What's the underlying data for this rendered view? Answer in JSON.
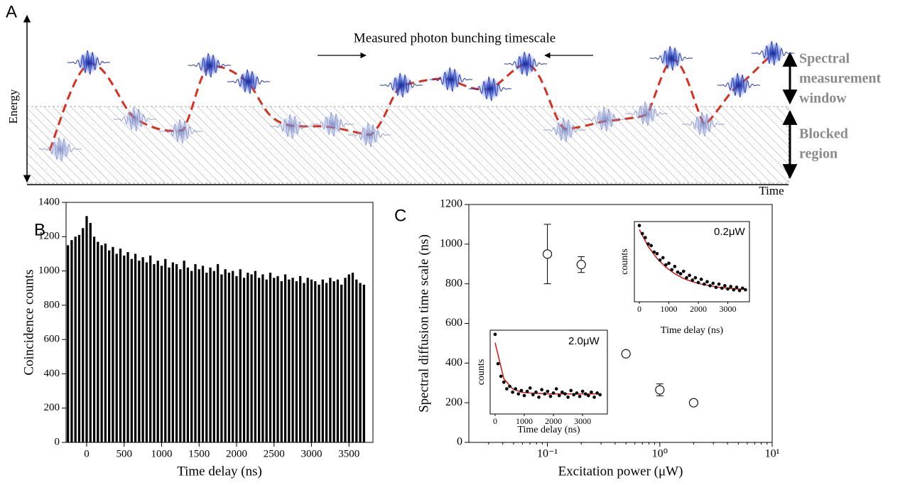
{
  "panel_labels": [
    "A",
    "B",
    "C"
  ],
  "diagram": {
    "title": "Measured photon bunching timescale",
    "y_label": "Energy",
    "x_label": "Time",
    "window_label": [
      "Spectral",
      "measurement",
      "window"
    ],
    "blocked_label": [
      "Blocked",
      "region"
    ]
  },
  "chart_data": [
    {
      "type": "bar",
      "xlabel": "Time delay (ns)",
      "ylabel": "Coincidence counts",
      "color": "#000000",
      "x": [
        -250,
        -200,
        -150,
        -100,
        -50,
        0,
        50,
        100,
        150,
        200,
        250,
        300,
        350,
        400,
        450,
        500,
        550,
        600,
        650,
        700,
        750,
        800,
        850,
        900,
        950,
        1000,
        1050,
        1100,
        1150,
        1200,
        1250,
        1300,
        1350,
        1400,
        1450,
        1500,
        1550,
        1600,
        1650,
        1700,
        1750,
        1800,
        1850,
        1900,
        1950,
        2000,
        2050,
        2100,
        2150,
        2200,
        2250,
        2300,
        2350,
        2400,
        2450,
        2500,
        2550,
        2600,
        2650,
        2700,
        2750,
        2800,
        2850,
        2900,
        2950,
        3000,
        3050,
        3100,
        3150,
        3200,
        3250,
        3300,
        3350,
        3400,
        3450,
        3500,
        3550,
        3600,
        3650,
        3700
      ],
      "values": [
        1150,
        1180,
        1200,
        1210,
        1250,
        1320,
        1280,
        1200,
        1170,
        1150,
        1160,
        1120,
        1140,
        1100,
        1130,
        1090,
        1110,
        1070,
        1100,
        1060,
        1080,
        1050,
        1090,
        1040,
        1060,
        1030,
        1070,
        1020,
        1050,
        1040,
        1010,
        1060,
        1020,
        1000,
        1040,
        1010,
        1030,
        990,
        1020,
        1000,
        1040,
        980,
        1010,
        990,
        1000,
        970,
        1010,
        960,
        990,
        980,
        1000,
        960,
        980,
        950,
        990,
        960,
        970,
        940,
        980,
        950,
        960,
        940,
        970,
        930,
        960,
        950,
        940,
        920,
        950,
        930,
        960,
        940,
        950,
        920,
        960,
        980,
        990,
        950,
        930,
        920
      ],
      "xlim": [
        -275,
        3820
      ],
      "ylim": [
        0,
        1400
      ],
      "xticks": [
        0,
        500,
        1000,
        1500,
        2000,
        2500,
        3000,
        3500
      ],
      "yticks": [
        0,
        200,
        400,
        600,
        800,
        1000,
        1200,
        1400
      ]
    },
    {
      "type": "scatter",
      "xlabel": "Excitation power  (μW)",
      "ylabel": "Spectral diffusion time scale (ns)",
      "color": "#000000",
      "xscale": "log",
      "x": [
        0.1,
        0.2,
        0.5,
        1,
        2
      ],
      "values": [
        950,
        897,
        447,
        265,
        200
      ],
      "errors": [
        150,
        40,
        10,
        30,
        12
      ],
      "xlim": [
        0.02,
        10
      ],
      "ylim": [
        0,
        1200
      ],
      "xticks": [
        {
          "value": 0.1,
          "label": "10⁻¹"
        },
        {
          "value": 1,
          "label": "10⁰"
        },
        {
          "value": 10,
          "label": "10¹"
        }
      ],
      "yticks": [
        0,
        200,
        400,
        600,
        800,
        1000,
        1200
      ]
    },
    {
      "type": "scatter",
      "label": "0.2μW",
      "xlabel": "Time delay (ns)",
      "ylabel": "counts",
      "color": "#000000",
      "x": [
        0,
        100,
        200,
        300,
        400,
        500,
        600,
        700,
        800,
        900,
        1000,
        1100,
        1200,
        1300,
        1400,
        1500,
        1600,
        1700,
        1800,
        1900,
        2000,
        2100,
        2200,
        2300,
        2400,
        2500,
        2600,
        2700,
        2800,
        2900,
        3000,
        3100,
        3200,
        3300,
        3400,
        3500,
        3600
      ],
      "values": [
        0.95,
        0.85,
        0.8,
        0.72,
        0.7,
        0.62,
        0.6,
        0.52,
        0.55,
        0.46,
        0.48,
        0.4,
        0.44,
        0.37,
        0.35,
        0.38,
        0.3,
        0.33,
        0.27,
        0.3,
        0.24,
        0.28,
        0.22,
        0.25,
        0.2,
        0.23,
        0.18,
        0.22,
        0.17,
        0.2,
        0.16,
        0.19,
        0.15,
        0.18,
        0.14,
        0.17,
        0.15
      ],
      "fit": {
        "color": "#d42020",
        "x": [
          0,
          300,
          600,
          900,
          1200,
          1500,
          1800,
          2100,
          2400,
          2700,
          3000,
          3300,
          3600
        ],
        "values": [
          0.9,
          0.69,
          0.54,
          0.43,
          0.35,
          0.29,
          0.25,
          0.22,
          0.2,
          0.18,
          0.17,
          0.16,
          0.16
        ]
      },
      "xlim": [
        -170,
        3735
      ],
      "ylim": [
        0,
        1
      ],
      "xticks": [
        0,
        1000,
        2000,
        3000
      ]
    },
    {
      "type": "scatter",
      "label": "2.0μW",
      "xlabel": "Time delay (ns)",
      "ylabel": "counts",
      "color": "#000000",
      "x": [
        0,
        100,
        200,
        300,
        400,
        500,
        600,
        700,
        800,
        900,
        1000,
        1100,
        1200,
        1300,
        1400,
        1500,
        1600,
        1700,
        1800,
        1900,
        2000,
        2100,
        2200,
        2300,
        2400,
        2500,
        2600,
        2700,
        2800,
        2900,
        3000,
        3100,
        3200,
        3300,
        3400,
        3500,
        3600
      ],
      "values": [
        0.95,
        0.6,
        0.45,
        0.38,
        0.3,
        0.33,
        0.26,
        0.3,
        0.24,
        0.28,
        0.22,
        0.27,
        0.31,
        0.23,
        0.26,
        0.2,
        0.29,
        0.24,
        0.27,
        0.21,
        0.25,
        0.3,
        0.22,
        0.26,
        0.24,
        0.2,
        0.28,
        0.23,
        0.25,
        0.21,
        0.27,
        0.24,
        0.22,
        0.26,
        0.2,
        0.25,
        0.23
      ],
      "fit": {
        "color": "#d42020",
        "x": [
          0,
          300,
          600,
          900,
          1200,
          1500,
          1800,
          2100,
          2400,
          2700,
          3000,
          3300,
          3600
        ],
        "values": [
          0.85,
          0.42,
          0.3,
          0.26,
          0.25,
          0.245,
          0.24,
          0.24,
          0.24,
          0.24,
          0.24,
          0.24,
          0.24
        ]
      },
      "xlim": [
        -170,
        3850
      ],
      "ylim": [
        0,
        1
      ],
      "xticks": [
        0,
        1000,
        2000,
        3000
      ]
    }
  ]
}
